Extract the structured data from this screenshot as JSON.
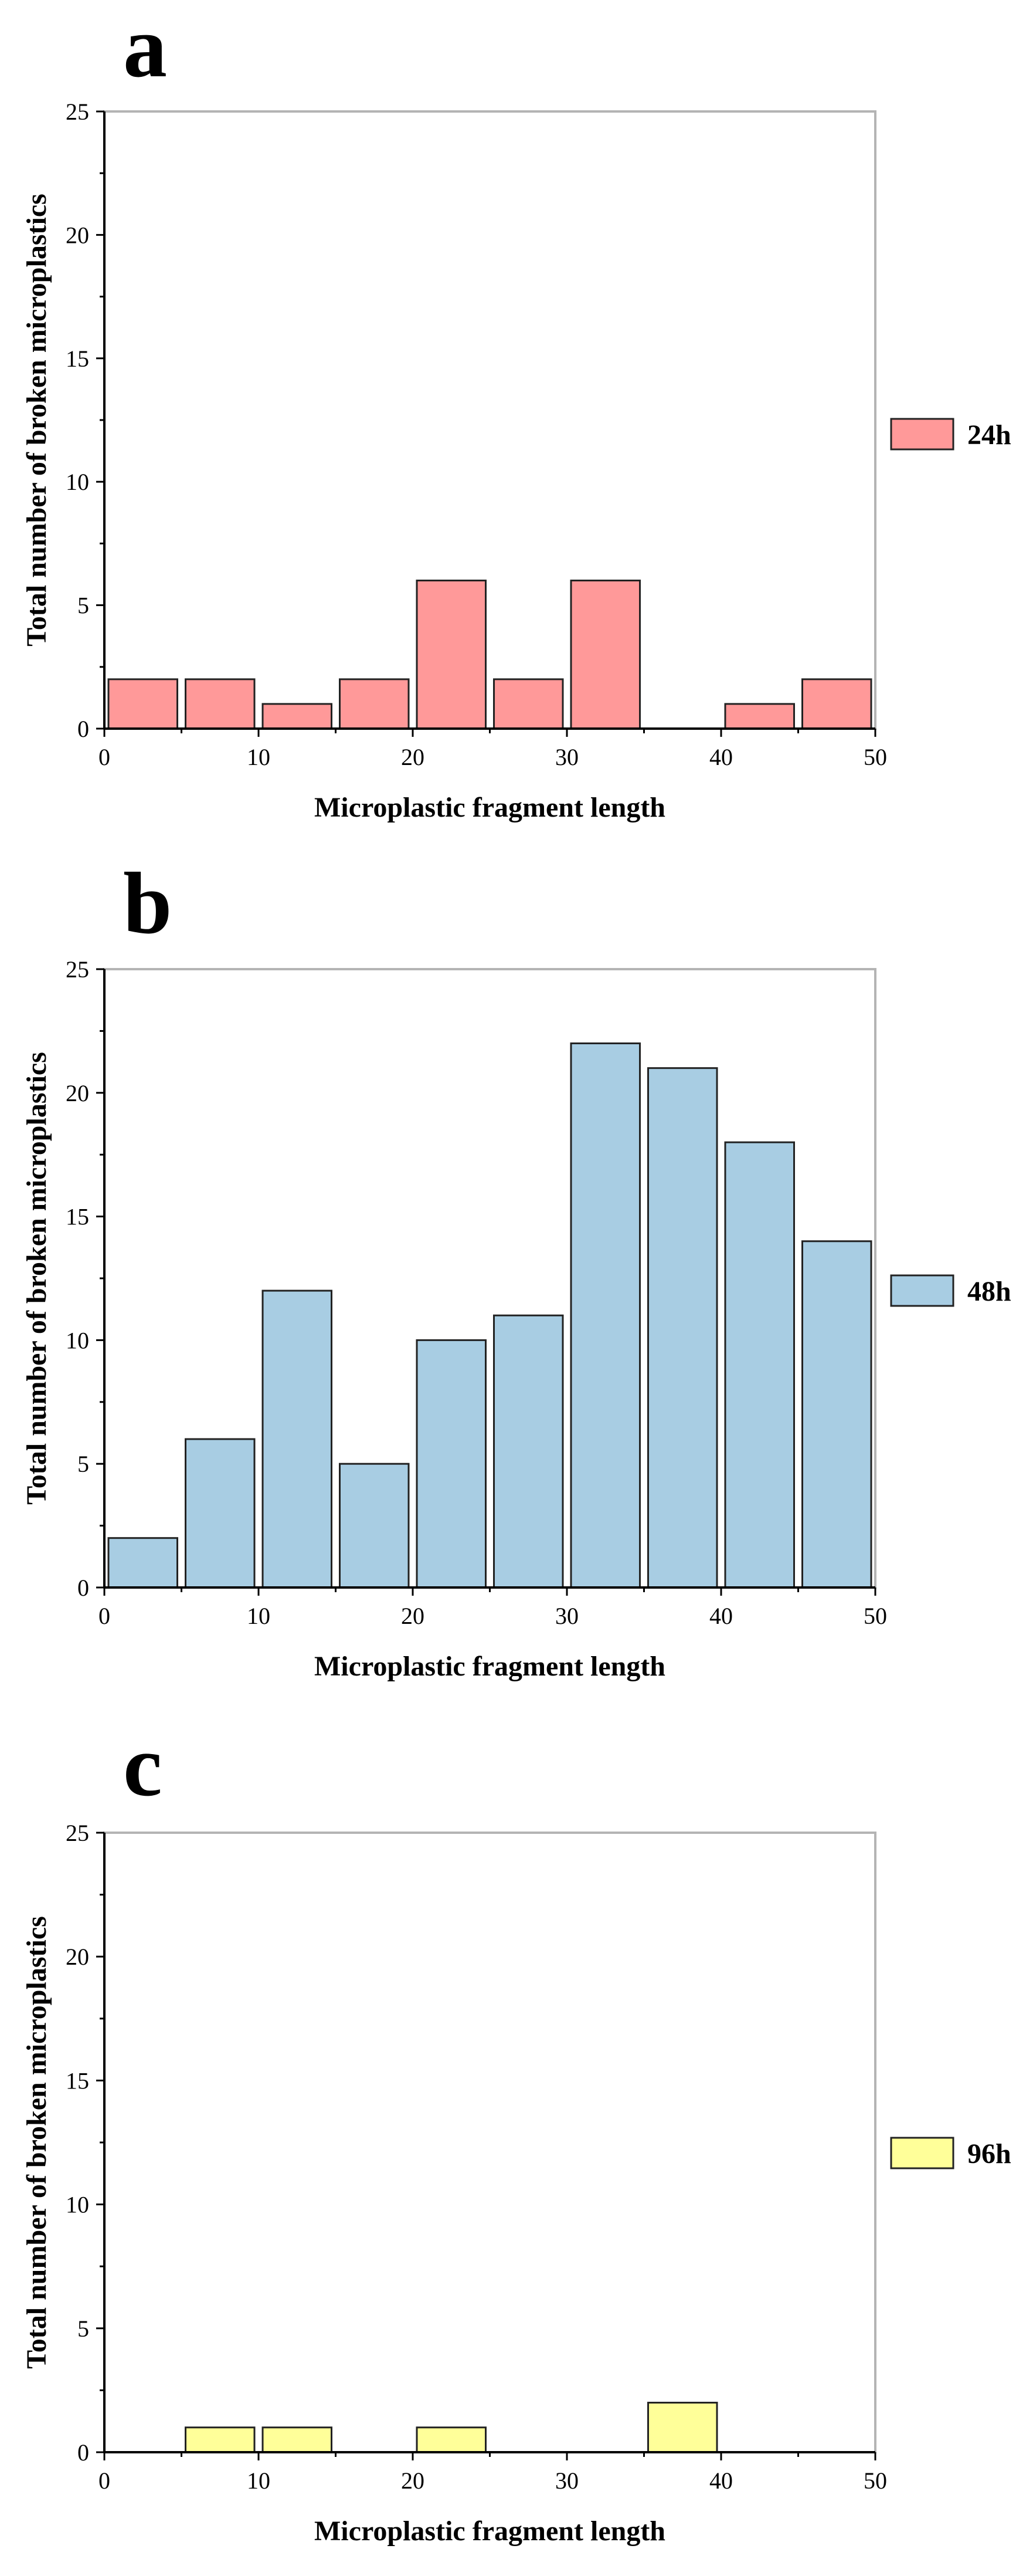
{
  "chart_data": [
    {
      "panel": "a",
      "type": "bar",
      "xlabel": "Microplastic fragment length",
      "ylabel": "Total number of broken microplastics",
      "xlim": [
        0,
        50
      ],
      "ylim": [
        0,
        25
      ],
      "xticks": [
        0,
        10,
        20,
        30,
        40,
        50
      ],
      "yticks": [
        0,
        5,
        10,
        15,
        20,
        25
      ],
      "bin_width": 5,
      "bin_starts": [
        0,
        5,
        10,
        15,
        20,
        25,
        30,
        35,
        40,
        45
      ],
      "values": [
        2,
        2,
        1,
        2,
        6,
        2,
        6,
        0,
        1,
        2
      ],
      "legend": "24h",
      "color": "#ff9999",
      "legend_position": "right"
    },
    {
      "panel": "b",
      "type": "bar",
      "xlabel": "Microplastic fragment length",
      "ylabel": "Total number of broken microplastics",
      "xlim": [
        0,
        50
      ],
      "ylim": [
        0,
        25
      ],
      "xticks": [
        0,
        10,
        20,
        30,
        40,
        50
      ],
      "yticks": [
        0,
        5,
        10,
        15,
        20,
        25
      ],
      "bin_width": 5,
      "bin_starts": [
        0,
        5,
        10,
        15,
        20,
        25,
        30,
        35,
        40,
        45
      ],
      "values": [
        2,
        6,
        12,
        5,
        10,
        11,
        22,
        21,
        18,
        14
      ],
      "legend": "48h",
      "color": "#a8cde3",
      "legend_position": "right"
    },
    {
      "panel": "c",
      "type": "bar",
      "xlabel": "Microplastic fragment length",
      "ylabel": "Total number of broken microplastics",
      "xlim": [
        0,
        50
      ],
      "ylim": [
        0,
        25
      ],
      "xticks": [
        0,
        10,
        20,
        30,
        40,
        50
      ],
      "yticks": [
        0,
        5,
        10,
        15,
        20,
        25
      ],
      "bin_width": 5,
      "bin_starts": [
        0,
        5,
        10,
        15,
        20,
        25,
        30,
        35,
        40,
        45
      ],
      "values": [
        0,
        1,
        1,
        0,
        1,
        0,
        0,
        2,
        0,
        0
      ],
      "legend": "96h",
      "color": "#ffff99",
      "legend_position": "right"
    }
  ]
}
